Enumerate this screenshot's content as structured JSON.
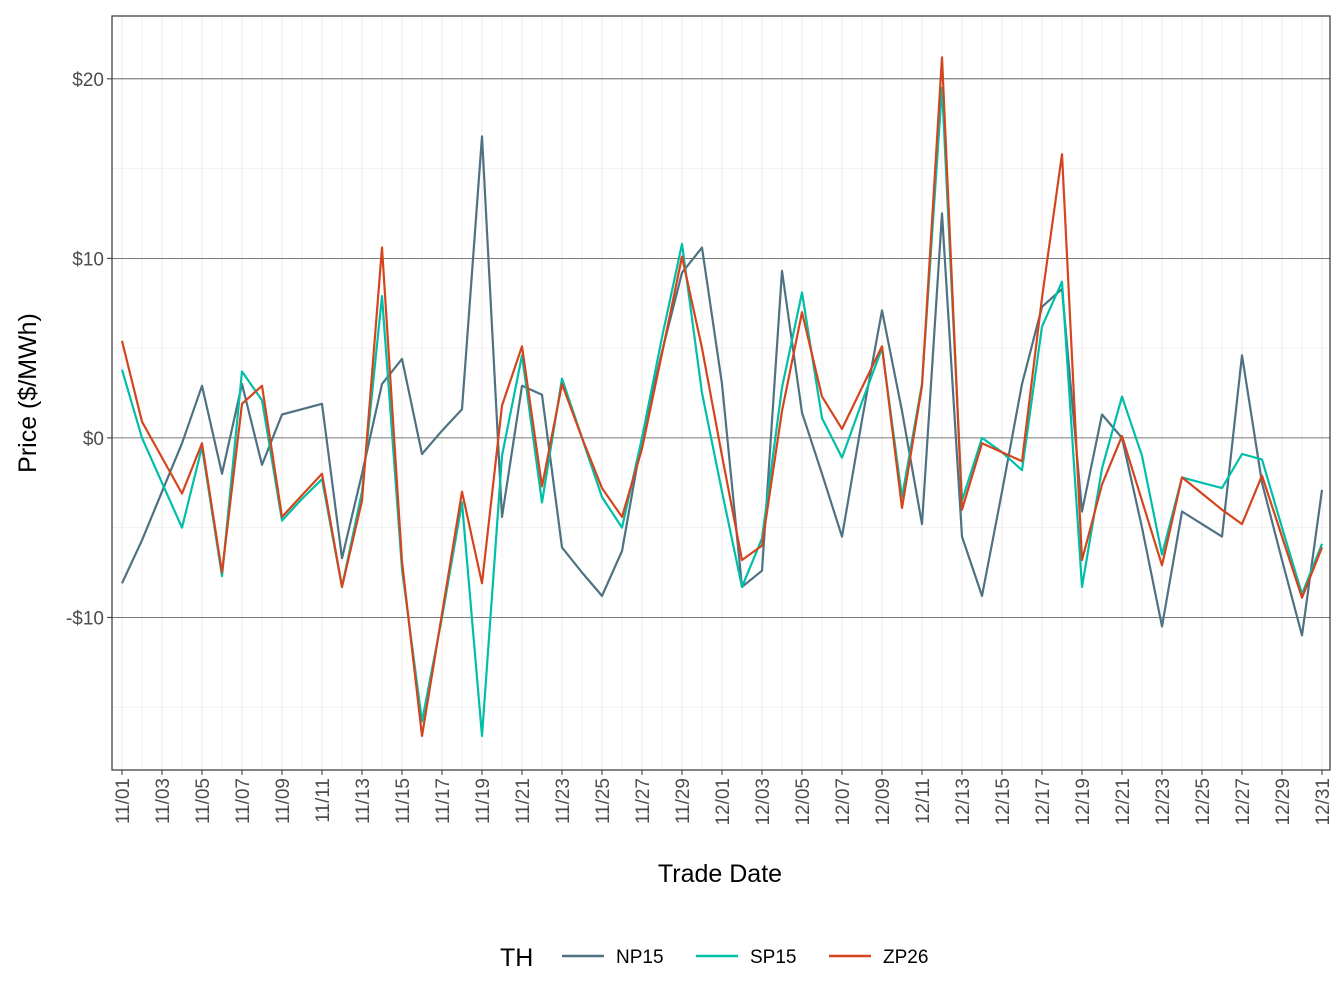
{
  "chart_data": {
    "type": "line",
    "xlabel": "Trade Date",
    "ylabel": "Price ($/MWh)",
    "ylim": [
      -18.5,
      23.5
    ],
    "y_ticks": [
      {
        "value": 20,
        "label": "$20"
      },
      {
        "value": 10,
        "label": "$10"
      },
      {
        "value": 0,
        "label": "$0"
      },
      {
        "value": -10,
        "label": "-$10"
      }
    ],
    "x_tick_labels": [
      "11/01",
      "11/03",
      "11/05",
      "11/07",
      "11/09",
      "11/11",
      "11/13",
      "11/15",
      "11/17",
      "11/19",
      "11/21",
      "11/23",
      "11/25",
      "11/27",
      "11/29",
      "12/01",
      "12/03",
      "12/05",
      "12/07",
      "12/09",
      "12/11",
      "12/13",
      "12/15",
      "12/17",
      "12/19",
      "12/21",
      "12/23",
      "12/25",
      "12/27",
      "12/29",
      "12/31"
    ],
    "x": [
      "11/01",
      "11/02",
      "11/03",
      "11/04",
      "11/05",
      "11/06",
      "11/07",
      "11/08",
      "11/09",
      "11/10",
      "11/11",
      "11/12",
      "11/13",
      "11/14",
      "11/15",
      "11/16",
      "11/17",
      "11/18",
      "11/19",
      "11/20",
      "11/21",
      "11/22",
      "11/23",
      "11/24",
      "11/25",
      "11/26",
      "11/27",
      "11/28",
      "11/29",
      "11/30",
      "12/01",
      "12/02",
      "12/03",
      "12/04",
      "12/05",
      "12/06",
      "12/07",
      "12/08",
      "12/09",
      "12/10",
      "12/11",
      "12/12",
      "12/13",
      "12/14",
      "12/15",
      "12/16",
      "12/17",
      "12/18",
      "12/19",
      "12/20",
      "12/21",
      "12/22",
      "12/23",
      "12/24",
      "12/25",
      "12/26",
      "12/27",
      "12/28",
      "12/29",
      "12/30",
      "12/31"
    ],
    "grid": true,
    "legend": {
      "title": "TH",
      "position": "bottom"
    },
    "series": [
      {
        "name": "NP15",
        "color": "#4e7282",
        "values": [
          -8.1,
          -5.7,
          -3.0,
          -0.3,
          2.9,
          -2.0,
          3.0,
          -1.5,
          1.3,
          1.6,
          1.9,
          -6.7,
          -2.0,
          3.0,
          4.4,
          -0.9,
          0.4,
          1.6,
          16.8,
          -4.4,
          2.9,
          2.4,
          -6.1,
          -7.5,
          -8.8,
          -6.3,
          0.0,
          4.8,
          9.2,
          10.6,
          3.0,
          -8.3,
          -7.4,
          9.3,
          1.4,
          -2.0,
          -5.5,
          1.0,
          7.1,
          1.5,
          -4.8,
          12.5,
          -5.5,
          -8.8,
          -3.0,
          3.0,
          7.3,
          8.3,
          -4.1,
          1.3,
          0.0,
          -5.0,
          -10.5,
          -4.1,
          -4.8,
          -5.5,
          4.6,
          -2.5,
          -6.8,
          -11.0,
          -2.9
        ]
      },
      {
        "name": "SP15",
        "color": "#00bfa8",
        "values": [
          3.8,
          0.0,
          -2.5,
          -5.0,
          -0.5,
          -7.7,
          3.7,
          2.1,
          -4.6,
          -3.4,
          -2.3,
          -8.3,
          -3.0,
          7.9,
          -7.3,
          -15.8,
          -10.0,
          -3.6,
          -16.6,
          -1.0,
          4.6,
          -3.6,
          3.3,
          0.0,
          -3.3,
          -5.0,
          0.0,
          5.6,
          10.8,
          2.5,
          -3.0,
          -8.3,
          -5.6,
          2.8,
          8.1,
          1.1,
          -1.1,
          2.0,
          5.0,
          -3.3,
          3.0,
          19.5,
          -3.5,
          0.0,
          -0.8,
          -1.8,
          6.2,
          8.7,
          -8.3,
          -1.7,
          2.3,
          -1.0,
          -6.5,
          -2.2,
          -2.5,
          -2.8,
          -0.9,
          -1.2,
          -5.0,
          -8.7,
          -5.9
        ]
      },
      {
        "name": "ZP26",
        "color": "#d4451e",
        "values": [
          5.4,
          0.9,
          -1.1,
          -3.1,
          -0.3,
          -7.5,
          1.9,
          2.9,
          -4.4,
          -3.2,
          -2.0,
          -8.3,
          -3.5,
          10.6,
          -6.9,
          -16.6,
          -9.8,
          -3.0,
          -8.1,
          1.8,
          5.1,
          -2.7,
          3.0,
          0.0,
          -2.8,
          -4.4,
          -0.6,
          4.7,
          10.1,
          5.0,
          -1.0,
          -6.8,
          -6.0,
          1.5,
          7.0,
          2.3,
          0.5,
          2.8,
          5.1,
          -3.9,
          2.9,
          21.2,
          -4.0,
          -0.3,
          -0.8,
          -1.3,
          7.8,
          15.8,
          -6.8,
          -2.6,
          0.1,
          -3.5,
          -7.1,
          -2.2,
          -3.1,
          -4.0,
          -4.8,
          -2.1,
          -5.5,
          -8.9,
          -6.1
        ]
      }
    ]
  }
}
